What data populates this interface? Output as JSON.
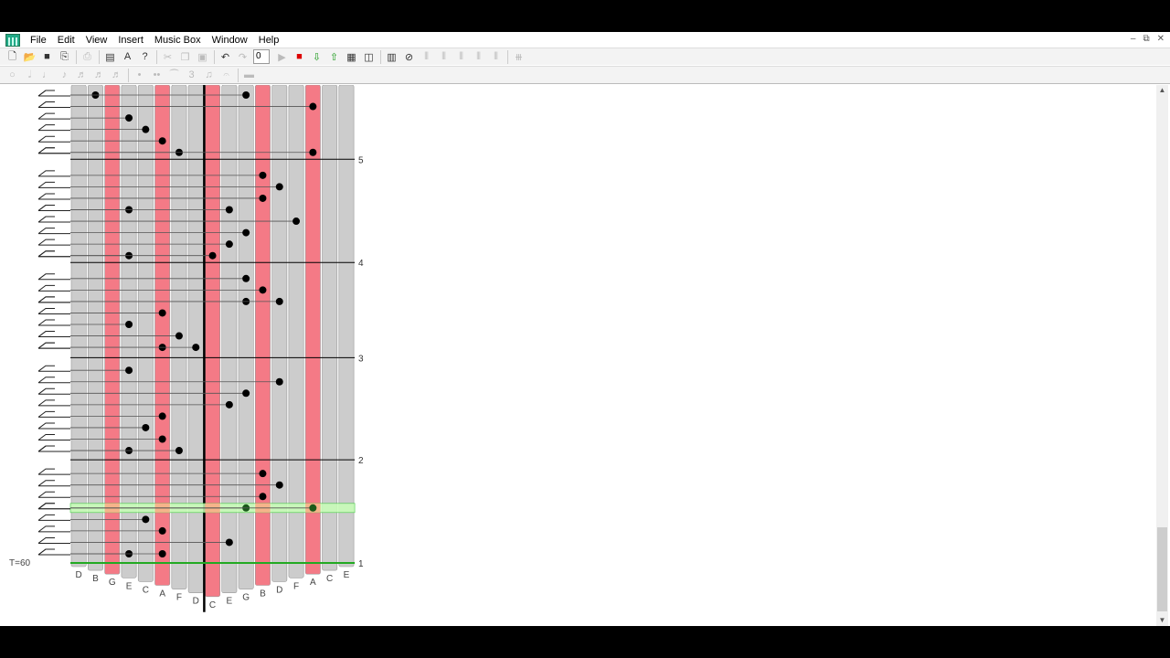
{
  "menu": [
    "File",
    "Edit",
    "View",
    "Insert",
    "Music Box",
    "Window",
    "Help"
  ],
  "window_controls": [
    "minimize-icon",
    "restore-icon",
    "close-icon"
  ],
  "toolbar1": {
    "icons": [
      "new-icon",
      "open-icon",
      "save-icon",
      "export-icon",
      "|",
      "print-icon",
      "|",
      "properties-icon",
      "text-icon",
      "help-icon",
      "|",
      "cut-icon",
      "copy-icon",
      "paste-icon",
      "|",
      "undo-icon",
      "redo-icon"
    ],
    "position_value": "0",
    "icons2": [
      "play-icon",
      "stop-icon",
      "download-icon",
      "upload-icon",
      "view-icon",
      "split-icon",
      "|",
      "midi-icon",
      "mute-icon",
      "tine-abc-icon",
      "tine-icon",
      "tine-icon",
      "tine-icon",
      "tine-icon",
      "|",
      "tine-all-icon"
    ],
    "colors": {
      "stop": "#dd0000",
      "arrows": "#1a9a1a"
    }
  },
  "toolbar2": {
    "icons": [
      "whole-note-icon",
      "half-note-icon",
      "quarter-note-icon",
      "eighth-note-icon",
      "sixteenth-note-icon",
      "32nd-note-icon",
      "64th-note-icon",
      "|",
      "dot-icon",
      "double-dot-icon",
      "tie-icon",
      "triplet-icon",
      "beam-icon",
      "fermata-icon",
      "|",
      "rest-icon"
    ]
  },
  "score": {
    "tempo": "T=60",
    "tines": [
      "D",
      "B",
      "G",
      "E",
      "C",
      "A",
      "F",
      "D",
      "C",
      "E",
      "G",
      "B",
      "D",
      "F",
      "A",
      "C",
      "E"
    ],
    "highlighted_tines": [
      2,
      5,
      8,
      11,
      14
    ],
    "colors": {
      "tine": "#cccccc",
      "tine_highlight": "#f47a86",
      "playhead": "#c8ffb8",
      "playhead_on_red": "#f5b48a",
      "baseline": "#22aa22"
    },
    "measures": [
      {
        "label": "1",
        "step": -0.8
      },
      {
        "label": "2",
        "step": 8.2
      },
      {
        "label": "3",
        "step": 17.1
      },
      {
        "label": "4",
        "step": 25.4
      },
      {
        "label": "5",
        "step": 34.4
      }
    ],
    "playhead_step": 4,
    "notes": [
      {
        "tine": 3,
        "step": 0
      },
      {
        "tine": 5,
        "step": 0
      },
      {
        "tine": 9,
        "step": 1
      },
      {
        "tine": 5,
        "step": 2
      },
      {
        "tine": 4,
        "step": 3
      },
      {
        "tine": 10,
        "step": 4
      },
      {
        "tine": 14,
        "step": 4
      },
      {
        "tine": 11,
        "step": 5
      },
      {
        "tine": 12,
        "step": 6
      },
      {
        "tine": 11,
        "step": 7
      },
      {
        "tine": 3,
        "step": 9
      },
      {
        "tine": 6,
        "step": 9
      },
      {
        "tine": 5,
        "step": 10
      },
      {
        "tine": 4,
        "step": 11
      },
      {
        "tine": 5,
        "step": 12
      },
      {
        "tine": 9,
        "step": 13
      },
      {
        "tine": 10,
        "step": 14
      },
      {
        "tine": 12,
        "step": 15
      },
      {
        "tine": 3,
        "step": 16
      },
      {
        "tine": 5,
        "step": 18
      },
      {
        "tine": 7,
        "step": 18
      },
      {
        "tine": 6,
        "step": 19
      },
      {
        "tine": 3,
        "step": 20
      },
      {
        "tine": 5,
        "step": 21
      },
      {
        "tine": 10,
        "step": 22
      },
      {
        "tine": 12,
        "step": 22
      },
      {
        "tine": 11,
        "step": 23
      },
      {
        "tine": 10,
        "step": 24
      },
      {
        "tine": 3,
        "step": 26
      },
      {
        "tine": 8,
        "step": 26
      },
      {
        "tine": 9,
        "step": 27
      },
      {
        "tine": 10,
        "step": 28
      },
      {
        "tine": 13,
        "step": 29
      },
      {
        "tine": 3,
        "step": 30
      },
      {
        "tine": 9,
        "step": 30
      },
      {
        "tine": 11,
        "step": 31
      },
      {
        "tine": 12,
        "step": 32
      },
      {
        "tine": 11,
        "step": 33
      },
      {
        "tine": 6,
        "step": 35
      },
      {
        "tine": 14,
        "step": 35
      },
      {
        "tine": 5,
        "step": 36
      },
      {
        "tine": 4,
        "step": 37
      },
      {
        "tine": 3,
        "step": 38
      },
      {
        "tine": 14,
        "step": 39
      },
      {
        "tine": 1,
        "step": 40
      },
      {
        "tine": 10,
        "step": 40
      }
    ]
  }
}
